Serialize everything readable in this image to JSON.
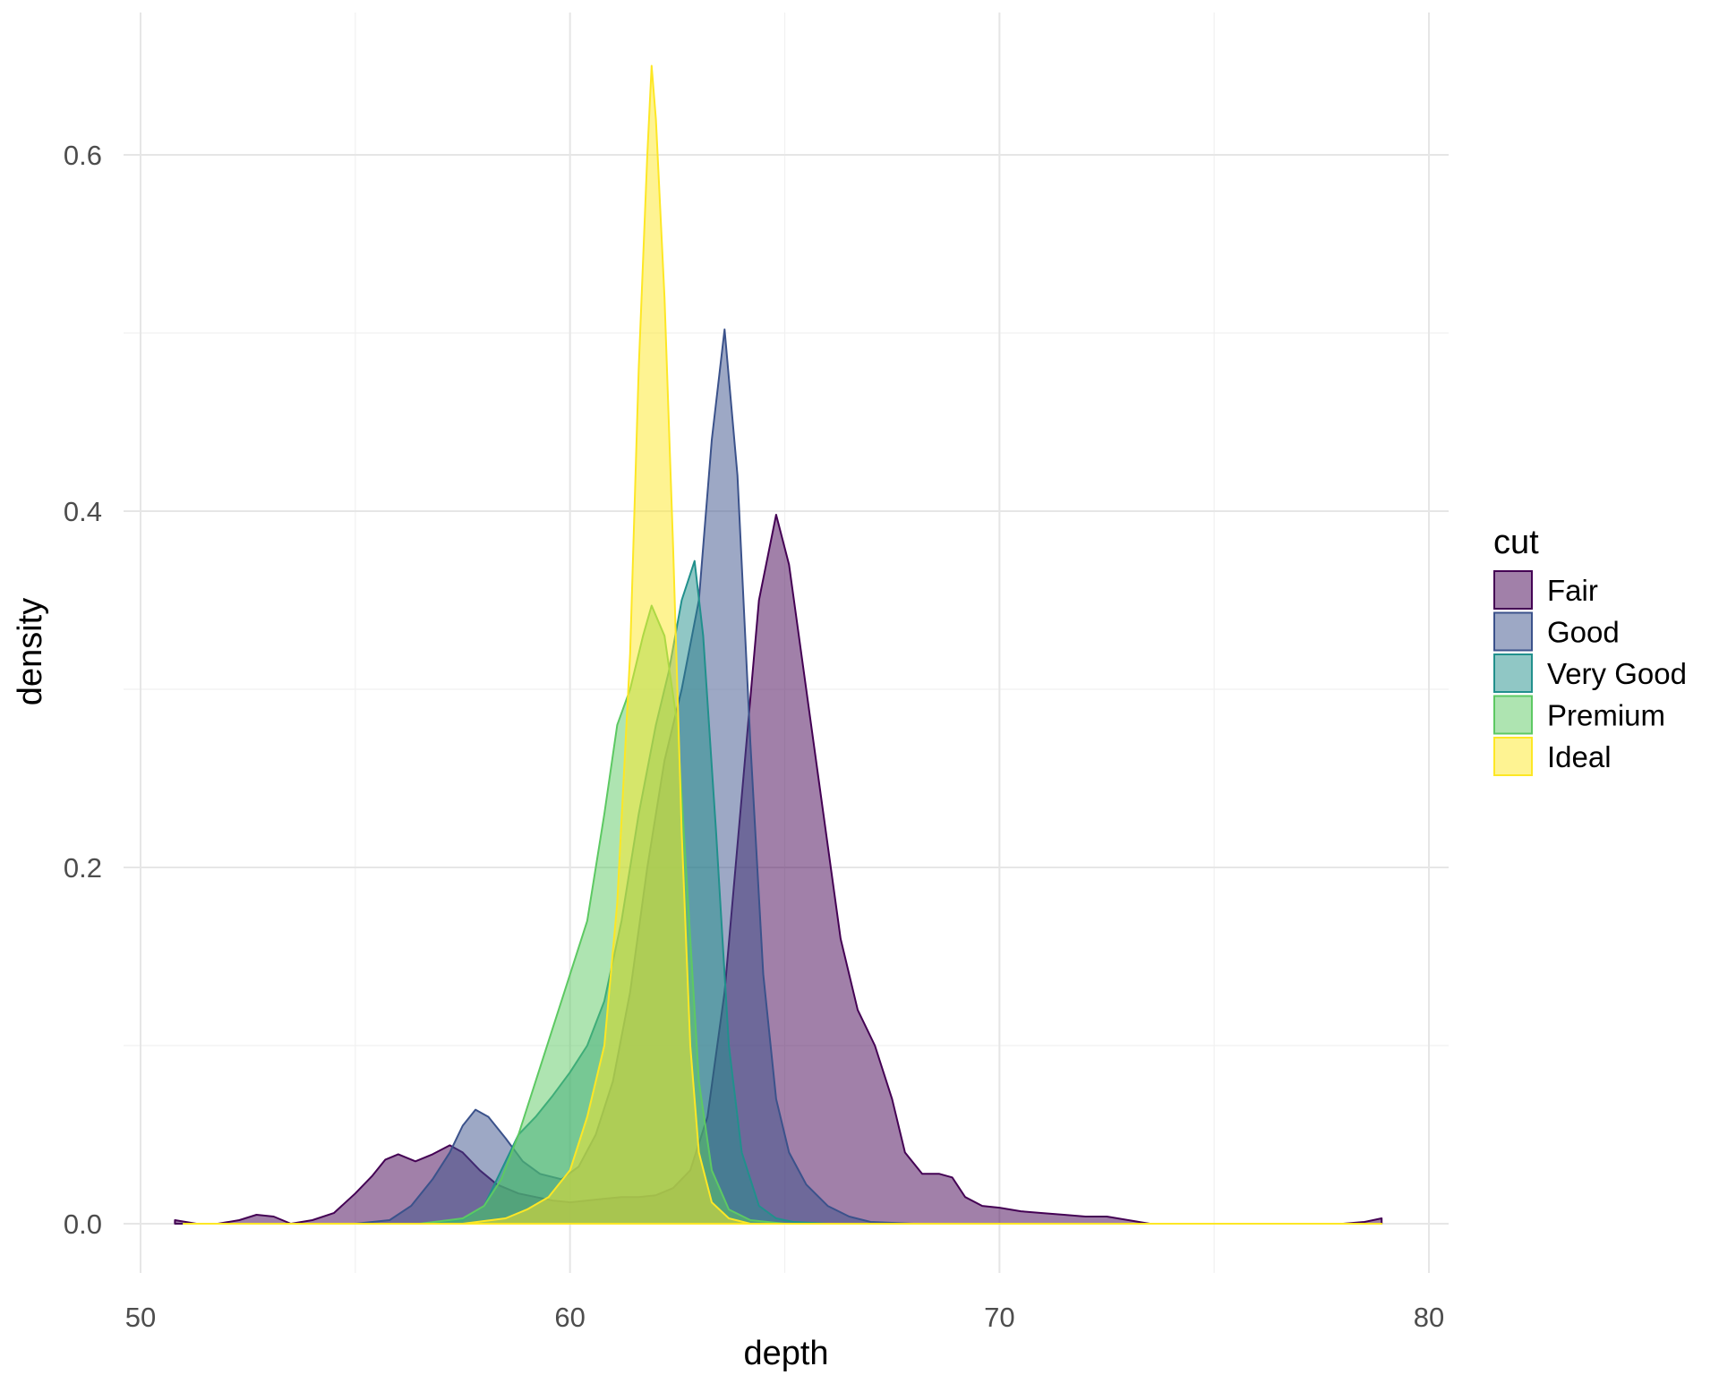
{
  "chart_data": {
    "type": "area",
    "subtype": "density",
    "xlabel": "depth",
    "ylabel": "density",
    "xlim": [
      50,
      80
    ],
    "ylim": [
      0,
      0.65
    ],
    "x_ticks": [
      50,
      60,
      70,
      80
    ],
    "y_ticks": [
      0.0,
      0.2,
      0.4,
      0.6
    ],
    "x_tick_labels": [
      "50",
      "60",
      "70",
      "80"
    ],
    "y_tick_labels": [
      "0.0",
      "0.2",
      "0.4",
      "0.6"
    ],
    "grid": true,
    "legend": {
      "title": "cut",
      "position": "right"
    },
    "series": [
      {
        "name": "Fair",
        "fill": "#440154",
        "stroke": "#440154",
        "points": [
          [
            50.8,
            0.002
          ],
          [
            51.3,
            0.0
          ],
          [
            51.8,
            0.0
          ],
          [
            52.3,
            0.002
          ],
          [
            52.7,
            0.005
          ],
          [
            53.1,
            0.004
          ],
          [
            53.5,
            0.0
          ],
          [
            54.0,
            0.002
          ],
          [
            54.5,
            0.006
          ],
          [
            55.0,
            0.017
          ],
          [
            55.4,
            0.027
          ],
          [
            55.7,
            0.036
          ],
          [
            56.0,
            0.039
          ],
          [
            56.4,
            0.035
          ],
          [
            56.8,
            0.039
          ],
          [
            57.2,
            0.044
          ],
          [
            57.5,
            0.04
          ],
          [
            57.9,
            0.03
          ],
          [
            58.3,
            0.022
          ],
          [
            58.8,
            0.017
          ],
          [
            59.2,
            0.015
          ],
          [
            59.6,
            0.013
          ],
          [
            60.0,
            0.012
          ],
          [
            60.4,
            0.013
          ],
          [
            60.8,
            0.014
          ],
          [
            61.2,
            0.015
          ],
          [
            61.6,
            0.015
          ],
          [
            62.0,
            0.016
          ],
          [
            62.4,
            0.02
          ],
          [
            62.8,
            0.03
          ],
          [
            63.2,
            0.06
          ],
          [
            63.6,
            0.13
          ],
          [
            64.0,
            0.24
          ],
          [
            64.4,
            0.35
          ],
          [
            64.8,
            0.398
          ],
          [
            65.1,
            0.37
          ],
          [
            65.5,
            0.3
          ],
          [
            65.9,
            0.23
          ],
          [
            66.3,
            0.16
          ],
          [
            66.7,
            0.12
          ],
          [
            67.1,
            0.1
          ],
          [
            67.5,
            0.07
          ],
          [
            67.8,
            0.04
          ],
          [
            68.2,
            0.028
          ],
          [
            68.6,
            0.028
          ],
          [
            68.9,
            0.026
          ],
          [
            69.2,
            0.015
          ],
          [
            69.6,
            0.01
          ],
          [
            70.0,
            0.009
          ],
          [
            70.5,
            0.007
          ],
          [
            71.0,
            0.006
          ],
          [
            71.5,
            0.005
          ],
          [
            72.0,
            0.004
          ],
          [
            72.5,
            0.004
          ],
          [
            73.0,
            0.002
          ],
          [
            73.5,
            0.0
          ],
          [
            74.5,
            0.0
          ],
          [
            76.0,
            0.0
          ],
          [
            78.0,
            0.0
          ],
          [
            78.5,
            0.001
          ],
          [
            78.9,
            0.003
          ]
        ]
      },
      {
        "name": "Good",
        "fill": "#3B528B",
        "stroke": "#3B528B",
        "points": [
          [
            51.0,
            0.0
          ],
          [
            53.0,
            0.0
          ],
          [
            55.0,
            0.0
          ],
          [
            55.8,
            0.002
          ],
          [
            56.3,
            0.01
          ],
          [
            56.8,
            0.025
          ],
          [
            57.2,
            0.04
          ],
          [
            57.5,
            0.055
          ],
          [
            57.8,
            0.064
          ],
          [
            58.1,
            0.06
          ],
          [
            58.5,
            0.048
          ],
          [
            58.9,
            0.035
          ],
          [
            59.3,
            0.028
          ],
          [
            59.8,
            0.025
          ],
          [
            60.2,
            0.032
          ],
          [
            60.6,
            0.05
          ],
          [
            61.0,
            0.08
          ],
          [
            61.4,
            0.13
          ],
          [
            61.8,
            0.2
          ],
          [
            62.2,
            0.26
          ],
          [
            62.6,
            0.3
          ],
          [
            63.0,
            0.35
          ],
          [
            63.3,
            0.44
          ],
          [
            63.6,
            0.502
          ],
          [
            63.9,
            0.42
          ],
          [
            64.2,
            0.27
          ],
          [
            64.5,
            0.14
          ],
          [
            64.8,
            0.07
          ],
          [
            65.1,
            0.04
          ],
          [
            65.5,
            0.022
          ],
          [
            66.0,
            0.01
          ],
          [
            66.5,
            0.004
          ],
          [
            67.0,
            0.001
          ],
          [
            68.0,
            0.0
          ],
          [
            70.0,
            0.0
          ]
        ]
      },
      {
        "name": "Very Good",
        "fill": "#21908C",
        "stroke": "#21908C",
        "points": [
          [
            51.0,
            0.0
          ],
          [
            54.0,
            0.0
          ],
          [
            56.5,
            0.0
          ],
          [
            57.5,
            0.002
          ],
          [
            58.0,
            0.01
          ],
          [
            58.4,
            0.03
          ],
          [
            58.8,
            0.05
          ],
          [
            59.2,
            0.06
          ],
          [
            59.6,
            0.072
          ],
          [
            60.0,
            0.085
          ],
          [
            60.4,
            0.1
          ],
          [
            60.8,
            0.125
          ],
          [
            61.2,
            0.17
          ],
          [
            61.6,
            0.23
          ],
          [
            62.0,
            0.28
          ],
          [
            62.3,
            0.31
          ],
          [
            62.6,
            0.35
          ],
          [
            62.9,
            0.372
          ],
          [
            63.1,
            0.33
          ],
          [
            63.4,
            0.22
          ],
          [
            63.7,
            0.1
          ],
          [
            64.0,
            0.04
          ],
          [
            64.4,
            0.01
          ],
          [
            64.8,
            0.003
          ],
          [
            65.2,
            0.001
          ],
          [
            66.0,
            0.0
          ],
          [
            70.0,
            0.0
          ]
        ]
      },
      {
        "name": "Premium",
        "fill": "#5DC963",
        "stroke": "#5DC963",
        "points": [
          [
            51.0,
            0.0
          ],
          [
            54.0,
            0.0
          ],
          [
            56.5,
            0.0
          ],
          [
            57.5,
            0.003
          ],
          [
            58.0,
            0.01
          ],
          [
            58.4,
            0.025
          ],
          [
            58.8,
            0.05
          ],
          [
            59.2,
            0.08
          ],
          [
            59.6,
            0.11
          ],
          [
            60.0,
            0.14
          ],
          [
            60.4,
            0.17
          ],
          [
            60.8,
            0.23
          ],
          [
            61.1,
            0.28
          ],
          [
            61.4,
            0.3
          ],
          [
            61.7,
            0.33
          ],
          [
            61.9,
            0.347
          ],
          [
            62.2,
            0.33
          ],
          [
            62.5,
            0.28
          ],
          [
            62.8,
            0.16
          ],
          [
            63.0,
            0.08
          ],
          [
            63.3,
            0.03
          ],
          [
            63.7,
            0.008
          ],
          [
            64.2,
            0.002
          ],
          [
            65.0,
            0.0
          ],
          [
            70.0,
            0.0
          ]
        ]
      },
      {
        "name": "Ideal",
        "fill": "#FDE725",
        "stroke": "#FDE725",
        "points": [
          [
            51.0,
            0.0
          ],
          [
            54.0,
            0.0
          ],
          [
            57.5,
            0.0
          ],
          [
            58.5,
            0.003
          ],
          [
            59.0,
            0.008
          ],
          [
            59.5,
            0.015
          ],
          [
            60.0,
            0.03
          ],
          [
            60.4,
            0.06
          ],
          [
            60.8,
            0.1
          ],
          [
            61.1,
            0.18
          ],
          [
            61.4,
            0.32
          ],
          [
            61.6,
            0.48
          ],
          [
            61.8,
            0.6
          ],
          [
            61.9,
            0.65
          ],
          [
            62.0,
            0.62
          ],
          [
            62.2,
            0.52
          ],
          [
            62.4,
            0.38
          ],
          [
            62.6,
            0.22
          ],
          [
            62.8,
            0.1
          ],
          [
            63.0,
            0.04
          ],
          [
            63.3,
            0.012
          ],
          [
            63.7,
            0.003
          ],
          [
            64.2,
            0.0
          ],
          [
            70.0,
            0.0
          ],
          [
            78.9,
            0.0
          ]
        ]
      }
    ]
  }
}
